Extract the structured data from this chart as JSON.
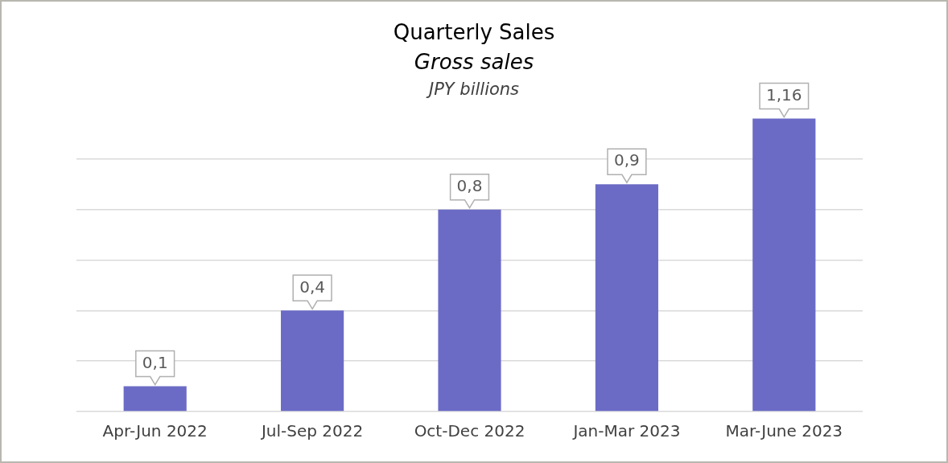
{
  "chart_data": {
    "type": "bar",
    "title": "Quarterly Sales",
    "subtitle": "Gross sales",
    "ylabel": "JPY billions",
    "categories": [
      "Apr-Jun 2022",
      "Jul-Sep 2022",
      "Oct-Dec 2022",
      "Jan-Mar 2023",
      "Mar-June 2023"
    ],
    "values": [
      0.1,
      0.4,
      0.8,
      0.9,
      1.16
    ],
    "value_labels": [
      "0,1",
      "0,4",
      "0,8",
      "0,9",
      "1,16"
    ],
    "color": "#6b6bc6",
    "yticks": [
      {
        "value": 0,
        "label": null
      },
      {
        "value": 0.2,
        "label": null
      },
      {
        "value": 0.4,
        "label": null
      },
      {
        "value": 0.6,
        "label": null
      },
      {
        "value": 0.8,
        "label": null
      },
      {
        "value": 1,
        "label": null
      }
    ],
    "tick_labels": "x",
    "grid": "y",
    "legend": false
  }
}
